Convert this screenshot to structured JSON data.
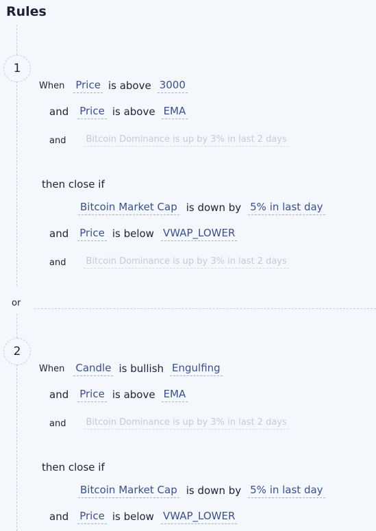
{
  "header": {
    "title": "Rules"
  },
  "separator": {
    "label": "or"
  },
  "rules": [
    {
      "number": "1",
      "when": {
        "label": "When",
        "conds": [
          {
            "subject": "Price",
            "op": "is above",
            "value": "3000"
          },
          {
            "conj": "and",
            "subject": "Price",
            "op": "is above",
            "value": "EMA"
          },
          {
            "conj": "and",
            "placeholder": "Bitcoin Dominance is up by 3% in last 2 days"
          }
        ]
      },
      "close": {
        "label": "then close if",
        "conds": [
          {
            "subject": "Bitcoin Market Cap",
            "op": "is down by",
            "value": "5% in last day"
          },
          {
            "conj": "and",
            "subject": "Price",
            "op": "is below",
            "value": "VWAP_LOWER"
          },
          {
            "conj": "and",
            "placeholder": "Bitcoin Dominance is up by 3% in last 2 days"
          }
        ]
      }
    },
    {
      "number": "2",
      "when": {
        "label": "When",
        "conds": [
          {
            "subject": "Candle",
            "op": "is bullish",
            "value": "Engulfing"
          },
          {
            "conj": "and",
            "subject": "Price",
            "op": "is above",
            "value": "EMA"
          },
          {
            "conj": "and",
            "placeholder": "Bitcoin Dominance is up by 3% in last 2 days"
          }
        ]
      },
      "close": {
        "label": "then close if",
        "conds": [
          {
            "subject": "Bitcoin Market Cap",
            "op": "is down by",
            "value": "5% in last day"
          },
          {
            "conj": "and",
            "subject": "Price",
            "op": "is below",
            "value": "VWAP_LOWER"
          }
        ]
      }
    }
  ]
}
